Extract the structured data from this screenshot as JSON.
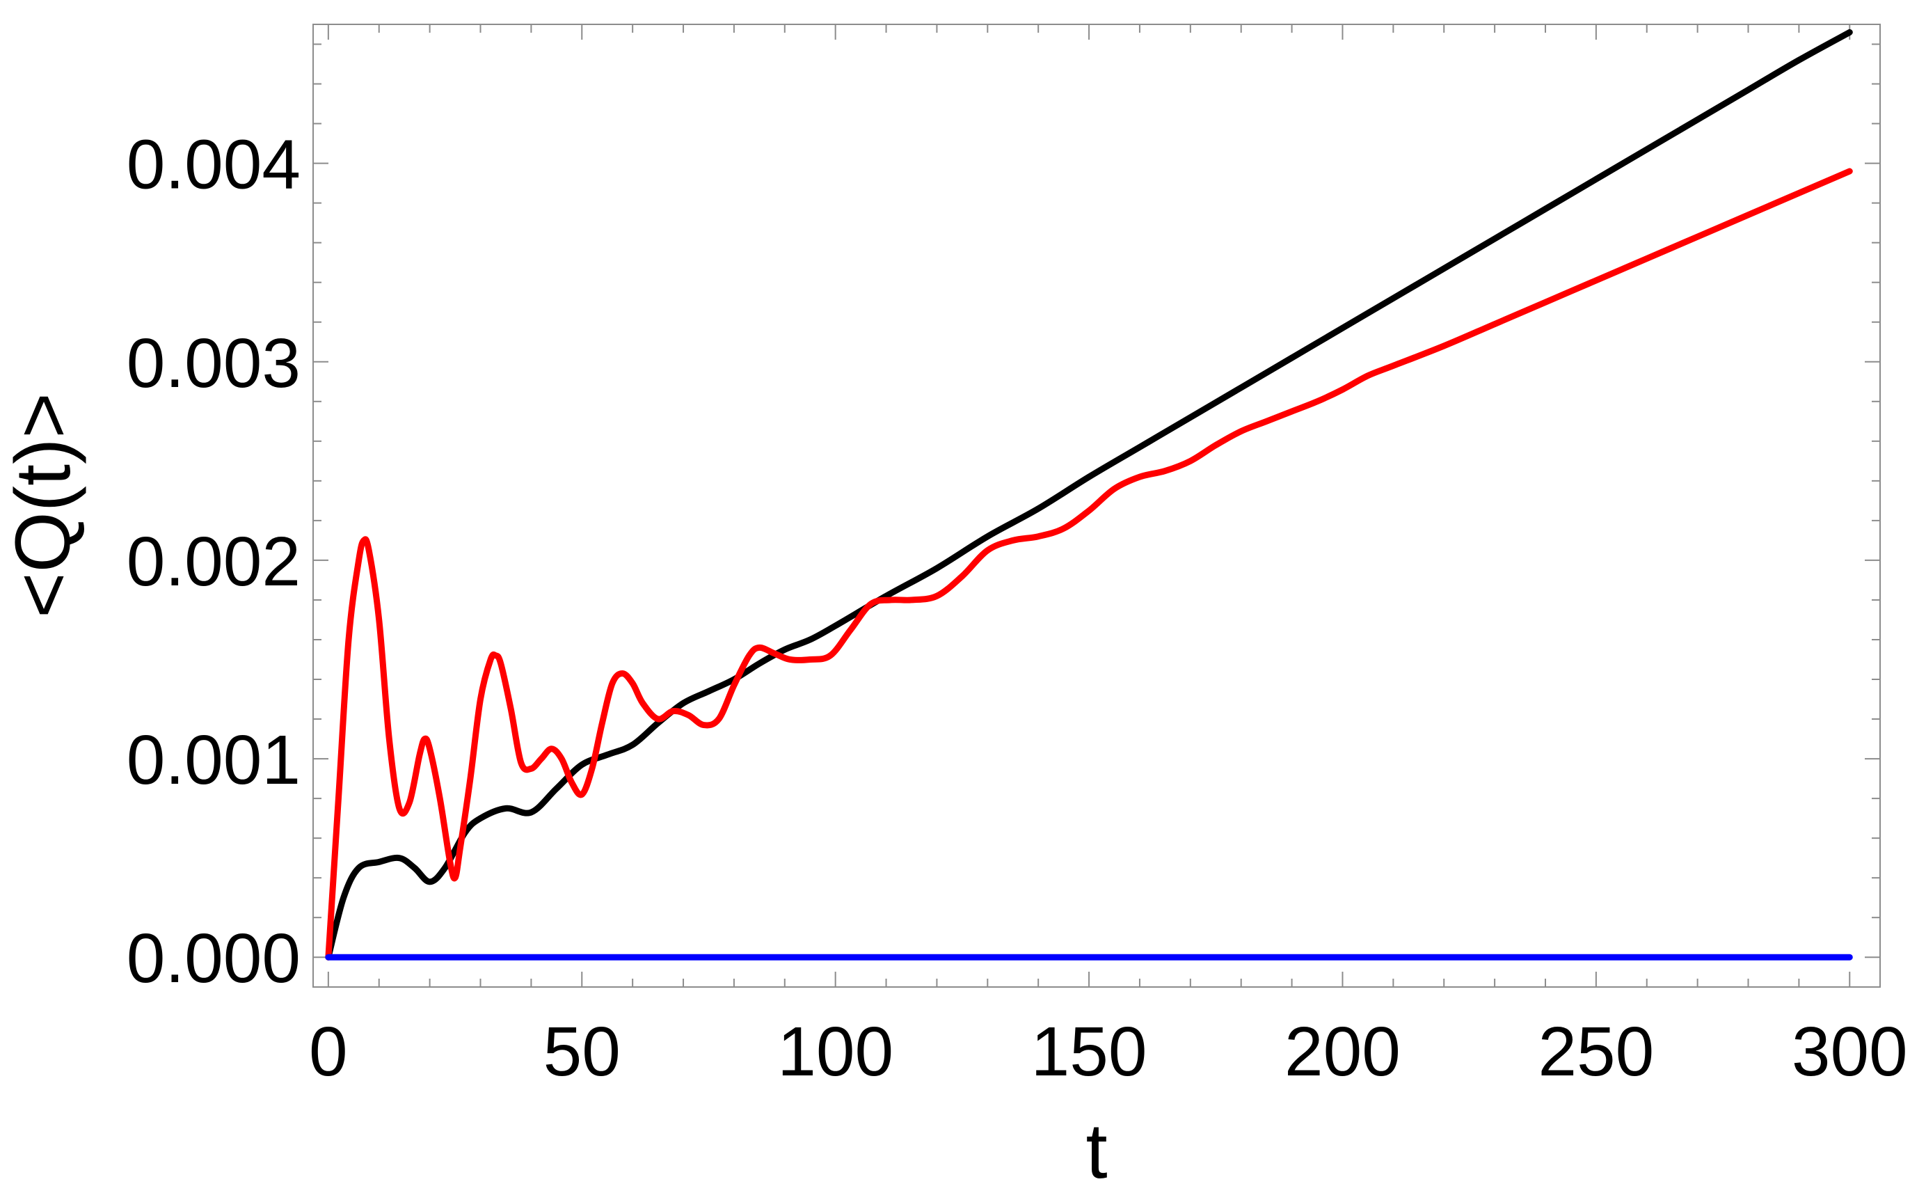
{
  "chart_data": {
    "type": "line",
    "title": "",
    "xlabel": "t",
    "ylabel": "<Q(t)>",
    "xlim": [
      -3,
      306
    ],
    "ylim": [
      -0.00015,
      0.0047
    ],
    "grid": false,
    "legend": "none",
    "x_ticks": [
      0,
      50,
      100,
      150,
      200,
      250,
      300
    ],
    "x_tick_labels": [
      "0",
      "50",
      "100",
      "150",
      "200",
      "250",
      "300"
    ],
    "y_ticks": [
      0,
      0.001,
      0.002,
      0.003,
      0.004
    ],
    "y_tick_labels": [
      "0.000",
      "0.001",
      "0.002",
      "0.003",
      "0.004"
    ],
    "series": [
      {
        "color": "#000000",
        "x": [
          0,
          3,
          6,
          10,
          14,
          17,
          20,
          23,
          27,
          30,
          35,
          40,
          45,
          50,
          55,
          60,
          65,
          70,
          75,
          80,
          85,
          90,
          95,
          100,
          110,
          120,
          130,
          140,
          150,
          160,
          170,
          180,
          190,
          200,
          210,
          220,
          230,
          240,
          250,
          260,
          270,
          280,
          290,
          300
        ],
        "y": [
          0,
          0.0003,
          0.00045,
          0.00048,
          0.0005,
          0.00045,
          0.00038,
          0.00045,
          0.00063,
          0.0007,
          0.00075,
          0.00073,
          0.00085,
          0.00097,
          0.00102,
          0.00107,
          0.00118,
          0.00128,
          0.00134,
          0.0014,
          0.00148,
          0.00155,
          0.0016,
          0.00167,
          0.00182,
          0.00196,
          0.00212,
          0.00226,
          0.00242,
          0.00257,
          0.00272,
          0.00287,
          0.00302,
          0.00317,
          0.00332,
          0.00347,
          0.00362,
          0.00377,
          0.00392,
          0.00407,
          0.00422,
          0.00437,
          0.00452,
          0.00466
        ]
      },
      {
        "color": "#ff0000",
        "x": [
          0,
          2,
          4,
          6,
          7,
          8,
          10,
          12,
          14,
          16,
          18,
          19,
          20,
          22,
          24,
          25,
          26,
          28,
          30,
          32,
          33,
          34,
          36,
          38,
          40,
          42,
          44,
          46,
          48,
          50,
          52,
          54,
          56,
          58,
          60,
          62,
          65,
          68,
          71,
          74,
          77,
          80,
          83,
          85,
          88,
          91,
          95,
          99,
          103,
          107,
          111,
          115,
          120,
          125,
          130,
          135,
          140,
          145,
          150,
          155,
          160,
          165,
          170,
          175,
          180,
          185,
          190,
          195,
          200,
          205,
          210,
          220,
          230,
          240,
          250,
          260,
          270,
          280,
          290,
          300
        ],
        "y": [
          0,
          0.0008,
          0.0016,
          0.002,
          0.0021,
          0.00205,
          0.0017,
          0.0011,
          0.00075,
          0.00078,
          0.00102,
          0.0011,
          0.00105,
          0.0008,
          0.00048,
          0.0004,
          0.00055,
          0.0009,
          0.0013,
          0.0015,
          0.00152,
          0.00148,
          0.00125,
          0.00098,
          0.00095,
          0.001,
          0.00105,
          0.001,
          0.00088,
          0.00082,
          0.00095,
          0.00118,
          0.00138,
          0.00143,
          0.00138,
          0.00128,
          0.0012,
          0.00124,
          0.00122,
          0.00117,
          0.0012,
          0.00137,
          0.00152,
          0.00156,
          0.00153,
          0.0015,
          0.0015,
          0.00152,
          0.00165,
          0.00178,
          0.0018,
          0.0018,
          0.00182,
          0.00192,
          0.00205,
          0.0021,
          0.00212,
          0.00216,
          0.00225,
          0.00236,
          0.00242,
          0.00245,
          0.0025,
          0.00258,
          0.00265,
          0.0027,
          0.00275,
          0.0028,
          0.00286,
          0.00293,
          0.00298,
          0.00308,
          0.00319,
          0.0033,
          0.00341,
          0.00352,
          0.00363,
          0.00374,
          0.00385,
          0.00396
        ]
      },
      {
        "color": "#0000ff",
        "x": [
          0,
          50,
          100,
          150,
          200,
          250,
          300
        ],
        "y": [
          0,
          0,
          0,
          0,
          0,
          0,
          0
        ]
      }
    ]
  }
}
